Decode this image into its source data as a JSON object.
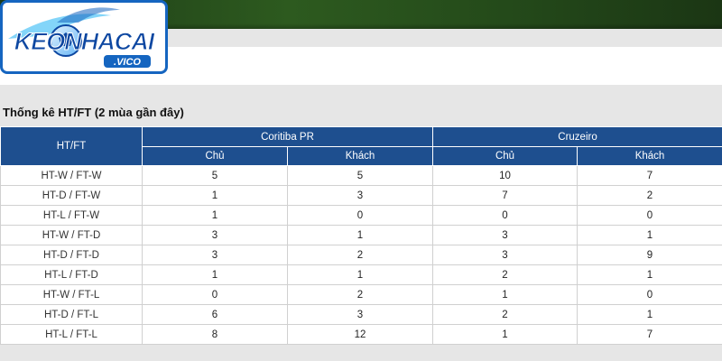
{
  "logo": {
    "brand_text": "KEONHACAI",
    "sub_text": ".VICO",
    "colors": {
      "blue": "#1565c0",
      "light_blue": "#4fc3f7"
    }
  },
  "section_title": "Thống kê HT/FT (2 mùa gần đây)",
  "table": {
    "first_header": "HT/FT",
    "teams": [
      "Coritiba PR",
      "Cruzeiro"
    ],
    "sub_headers": [
      "Chủ",
      "Khách",
      "Chủ",
      "Khách"
    ],
    "rows": [
      {
        "label": "HT-W / FT-W",
        "values": [
          "5",
          "5",
          "10",
          "7"
        ]
      },
      {
        "label": "HT-D / FT-W",
        "values": [
          "1",
          "3",
          "7",
          "2"
        ]
      },
      {
        "label": "HT-L / FT-W",
        "values": [
          "1",
          "0",
          "0",
          "0"
        ]
      },
      {
        "label": "HT-W / FT-D",
        "values": [
          "3",
          "1",
          "3",
          "1"
        ]
      },
      {
        "label": "HT-D / FT-D",
        "values": [
          "3",
          "2",
          "3",
          "9"
        ]
      },
      {
        "label": "HT-L / FT-D",
        "values": [
          "1",
          "1",
          "2",
          "1"
        ]
      },
      {
        "label": "HT-W / FT-L",
        "values": [
          "0",
          "2",
          "1",
          "0"
        ]
      },
      {
        "label": "HT-D / FT-L",
        "values": [
          "6",
          "3",
          "2",
          "1"
        ]
      },
      {
        "label": "HT-L / FT-L",
        "values": [
          "8",
          "12",
          "1",
          "7"
        ]
      }
    ]
  },
  "colors": {
    "header_bg": "#1e4f8f",
    "page_bg": "#e6e6e6"
  }
}
